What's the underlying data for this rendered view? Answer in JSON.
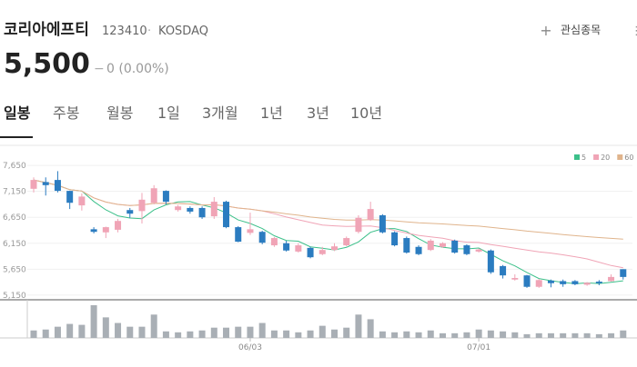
{
  "header": {
    "title": "코리아에프티",
    "code": "123410",
    "separator": "·",
    "market": "KOSDAQ",
    "watch_button": "관심종목",
    "price": "5,500",
    "change_sign": "−",
    "change": "0 (0.00%)"
  },
  "tabs": {
    "items": [
      "일봉",
      "주봉",
      "월봉",
      "1일",
      "3개월",
      "1년",
      "3년",
      "10년"
    ],
    "active": 0
  },
  "chart_data": {
    "type": "candlestick",
    "categories": [
      null,
      null,
      null,
      null,
      null,
      null,
      null,
      null,
      null,
      null,
      null,
      null,
      null,
      null,
      null,
      null,
      null,
      null,
      "06/03",
      null,
      null,
      null,
      null,
      null,
      null,
      null,
      null,
      null,
      null,
      null,
      null,
      null,
      null,
      null,
      null,
      null,
      null,
      "07/01",
      null,
      null,
      null,
      null,
      null,
      null,
      null,
      null,
      null,
      null,
      null,
      null
    ],
    "open": [
      7200,
      7330,
      7370,
      7160,
      6880,
      6420,
      6360,
      6410,
      6790,
      6770,
      6930,
      7160,
      6790,
      6830,
      6830,
      6670,
      6950,
      6460,
      6350,
      6370,
      6110,
      6150,
      5990,
      6060,
      5940,
      6020,
      6110,
      6370,
      6600,
      6690,
      6360,
      6250,
      6080,
      6020,
      6080,
      6200,
      6110,
      5990,
      6010,
      5710,
      5450,
      5530,
      5310,
      5430,
      5420,
      5420,
      5350,
      5410,
      5420,
      5650
    ],
    "high": [
      7420,
      7420,
      7540,
      7160,
      7110,
      6460,
      6470,
      6620,
      6830,
      7120,
      7270,
      7170,
      6890,
      6860,
      6860,
      7040,
      6970,
      6480,
      6740,
      6390,
      6270,
      6200,
      6150,
      6080,
      6080,
      6150,
      6280,
      6690,
      6950,
      6710,
      6380,
      6280,
      6110,
      6230,
      6170,
      6220,
      6130,
      6050,
      6030,
      5730,
      5550,
      5540,
      5460,
      5450,
      5450,
      5440,
      5400,
      5440,
      5550,
      5650
    ],
    "low": [
      7130,
      7070,
      7130,
      6810,
      6780,
      6340,
      6250,
      6360,
      6640,
      6530,
      6900,
      6900,
      6760,
      6720,
      6620,
      6620,
      6440,
      6170,
      6310,
      6130,
      6080,
      5990,
      5970,
      5860,
      5920,
      6000,
      6090,
      6340,
      6580,
      6340,
      6090,
      5950,
      5920,
      6000,
      6060,
      5950,
      5920,
      5970,
      5560,
      5470,
      5430,
      5290,
      5290,
      5300,
      5310,
      5340,
      5330,
      5340,
      5410,
      5450
    ],
    "close": [
      7370,
      7270,
      7160,
      6930,
      7050,
      6370,
      6460,
      6580,
      6720,
      6990,
      7210,
      6950,
      6860,
      6760,
      6650,
      6950,
      6460,
      6180,
      6420,
      6160,
      6250,
      6010,
      6110,
      5880,
      6020,
      6090,
      6250,
      6640,
      6810,
      6360,
      6110,
      5970,
      5940,
      6200,
      6150,
      5970,
      5940,
      6030,
      5590,
      5530,
      5480,
      5310,
      5440,
      5380,
      5360,
      5360,
      5390,
      5380,
      5500,
      5500
    ],
    "volume": [
      8,
      9,
      12,
      15,
      14,
      35,
      22,
      16,
      12,
      12,
      25,
      7,
      6,
      7,
      8,
      11,
      11,
      12,
      12,
      16,
      8,
      8,
      6,
      8,
      13,
      9,
      11,
      25,
      20,
      7,
      6,
      7,
      6,
      8,
      5,
      5,
      6,
      9,
      8,
      7,
      6,
      4,
      5,
      5,
      5,
      5,
      5,
      4,
      5,
      8
    ],
    "up_color": "#f0a4b6",
    "down_color": "#2b7cc0",
    "volume_color": "#a9afb5",
    "moving_averages": [
      {
        "period": 5,
        "color": "#3cc08a"
      },
      {
        "period": 20,
        "color": "#f0a4b6"
      },
      {
        "period": 60,
        "color": "#e0b48c"
      }
    ],
    "ylim": [
      5060,
      7950
    ],
    "yticks": [
      {
        "value": 7650,
        "label": "7,650"
      },
      {
        "value": 7150,
        "label": "7,150"
      },
      {
        "value": 6650,
        "label": "6,650"
      },
      {
        "value": 6150,
        "label": "6,150"
      },
      {
        "value": 5650,
        "label": "5,650"
      },
      {
        "value": 5150,
        "label": "5,150"
      }
    ],
    "grid": true
  }
}
